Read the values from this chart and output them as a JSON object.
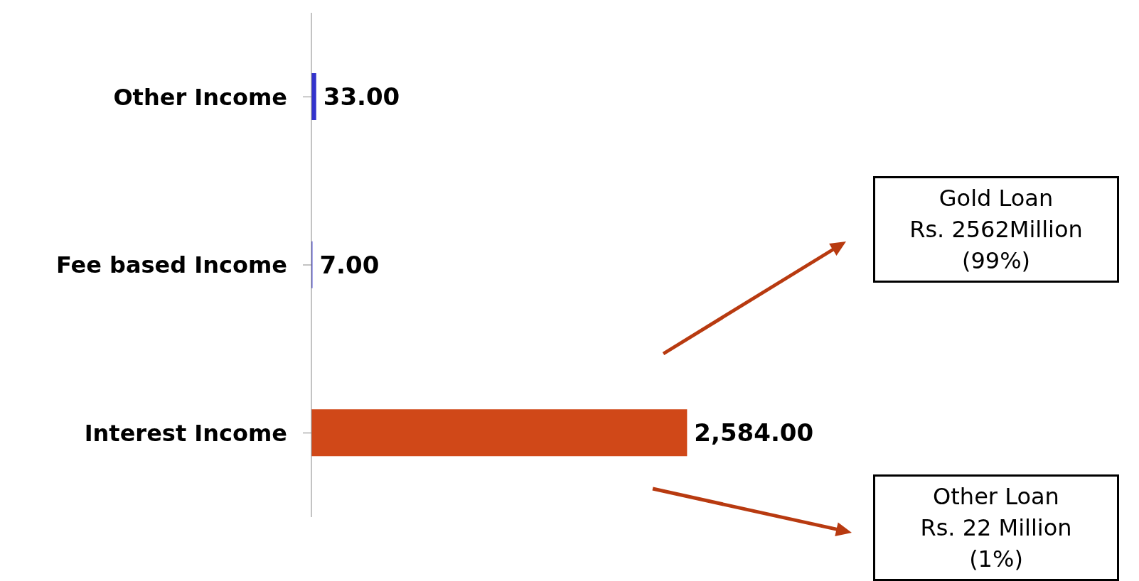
{
  "chart_data": {
    "type": "bar",
    "orientation": "horizontal",
    "categories": [
      "Other Income",
      "Fee based Income",
      "Interest Income"
    ],
    "values": [
      33,
      7,
      2584
    ],
    "colors": [
      "#3333cc",
      "#3333cc",
      "#d04818"
    ],
    "value_labels": [
      "33.00",
      "7.00",
      "2,584.00"
    ],
    "annotations": [
      "Gold Loan\nRs. 2562Million\n(99%)",
      "Other Loan\nRs. 22 Million\n(1%)"
    ]
  }
}
